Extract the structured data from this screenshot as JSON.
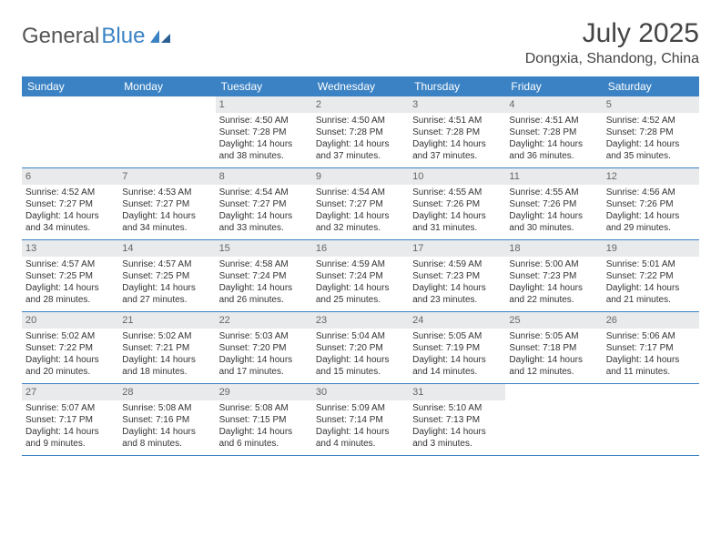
{
  "logo": {
    "text1": "General",
    "text2": "Blue"
  },
  "title": "July 2025",
  "location": "Dongxia, Shandong, China",
  "colors": {
    "header_bg": "#3b82c4",
    "header_text": "#ffffff",
    "daynum_bg": "#e8eaec",
    "border": "#3b82c4",
    "body_text": "#333333"
  },
  "day_headers": [
    "Sunday",
    "Monday",
    "Tuesday",
    "Wednesday",
    "Thursday",
    "Friday",
    "Saturday"
  ],
  "weeks": [
    [
      {
        "n": "",
        "sr": "",
        "ss": "",
        "dl": ""
      },
      {
        "n": "",
        "sr": "",
        "ss": "",
        "dl": ""
      },
      {
        "n": "1",
        "sr": "Sunrise: 4:50 AM",
        "ss": "Sunset: 7:28 PM",
        "dl": "Daylight: 14 hours and 38 minutes."
      },
      {
        "n": "2",
        "sr": "Sunrise: 4:50 AM",
        "ss": "Sunset: 7:28 PM",
        "dl": "Daylight: 14 hours and 37 minutes."
      },
      {
        "n": "3",
        "sr": "Sunrise: 4:51 AM",
        "ss": "Sunset: 7:28 PM",
        "dl": "Daylight: 14 hours and 37 minutes."
      },
      {
        "n": "4",
        "sr": "Sunrise: 4:51 AM",
        "ss": "Sunset: 7:28 PM",
        "dl": "Daylight: 14 hours and 36 minutes."
      },
      {
        "n": "5",
        "sr": "Sunrise: 4:52 AM",
        "ss": "Sunset: 7:28 PM",
        "dl": "Daylight: 14 hours and 35 minutes."
      }
    ],
    [
      {
        "n": "6",
        "sr": "Sunrise: 4:52 AM",
        "ss": "Sunset: 7:27 PM",
        "dl": "Daylight: 14 hours and 34 minutes."
      },
      {
        "n": "7",
        "sr": "Sunrise: 4:53 AM",
        "ss": "Sunset: 7:27 PM",
        "dl": "Daylight: 14 hours and 34 minutes."
      },
      {
        "n": "8",
        "sr": "Sunrise: 4:54 AM",
        "ss": "Sunset: 7:27 PM",
        "dl": "Daylight: 14 hours and 33 minutes."
      },
      {
        "n": "9",
        "sr": "Sunrise: 4:54 AM",
        "ss": "Sunset: 7:27 PM",
        "dl": "Daylight: 14 hours and 32 minutes."
      },
      {
        "n": "10",
        "sr": "Sunrise: 4:55 AM",
        "ss": "Sunset: 7:26 PM",
        "dl": "Daylight: 14 hours and 31 minutes."
      },
      {
        "n": "11",
        "sr": "Sunrise: 4:55 AM",
        "ss": "Sunset: 7:26 PM",
        "dl": "Daylight: 14 hours and 30 minutes."
      },
      {
        "n": "12",
        "sr": "Sunrise: 4:56 AM",
        "ss": "Sunset: 7:26 PM",
        "dl": "Daylight: 14 hours and 29 minutes."
      }
    ],
    [
      {
        "n": "13",
        "sr": "Sunrise: 4:57 AM",
        "ss": "Sunset: 7:25 PM",
        "dl": "Daylight: 14 hours and 28 minutes."
      },
      {
        "n": "14",
        "sr": "Sunrise: 4:57 AM",
        "ss": "Sunset: 7:25 PM",
        "dl": "Daylight: 14 hours and 27 minutes."
      },
      {
        "n": "15",
        "sr": "Sunrise: 4:58 AM",
        "ss": "Sunset: 7:24 PM",
        "dl": "Daylight: 14 hours and 26 minutes."
      },
      {
        "n": "16",
        "sr": "Sunrise: 4:59 AM",
        "ss": "Sunset: 7:24 PM",
        "dl": "Daylight: 14 hours and 25 minutes."
      },
      {
        "n": "17",
        "sr": "Sunrise: 4:59 AM",
        "ss": "Sunset: 7:23 PM",
        "dl": "Daylight: 14 hours and 23 minutes."
      },
      {
        "n": "18",
        "sr": "Sunrise: 5:00 AM",
        "ss": "Sunset: 7:23 PM",
        "dl": "Daylight: 14 hours and 22 minutes."
      },
      {
        "n": "19",
        "sr": "Sunrise: 5:01 AM",
        "ss": "Sunset: 7:22 PM",
        "dl": "Daylight: 14 hours and 21 minutes."
      }
    ],
    [
      {
        "n": "20",
        "sr": "Sunrise: 5:02 AM",
        "ss": "Sunset: 7:22 PM",
        "dl": "Daylight: 14 hours and 20 minutes."
      },
      {
        "n": "21",
        "sr": "Sunrise: 5:02 AM",
        "ss": "Sunset: 7:21 PM",
        "dl": "Daylight: 14 hours and 18 minutes."
      },
      {
        "n": "22",
        "sr": "Sunrise: 5:03 AM",
        "ss": "Sunset: 7:20 PM",
        "dl": "Daylight: 14 hours and 17 minutes."
      },
      {
        "n": "23",
        "sr": "Sunrise: 5:04 AM",
        "ss": "Sunset: 7:20 PM",
        "dl": "Daylight: 14 hours and 15 minutes."
      },
      {
        "n": "24",
        "sr": "Sunrise: 5:05 AM",
        "ss": "Sunset: 7:19 PM",
        "dl": "Daylight: 14 hours and 14 minutes."
      },
      {
        "n": "25",
        "sr": "Sunrise: 5:05 AM",
        "ss": "Sunset: 7:18 PM",
        "dl": "Daylight: 14 hours and 12 minutes."
      },
      {
        "n": "26",
        "sr": "Sunrise: 5:06 AM",
        "ss": "Sunset: 7:17 PM",
        "dl": "Daylight: 14 hours and 11 minutes."
      }
    ],
    [
      {
        "n": "27",
        "sr": "Sunrise: 5:07 AM",
        "ss": "Sunset: 7:17 PM",
        "dl": "Daylight: 14 hours and 9 minutes."
      },
      {
        "n": "28",
        "sr": "Sunrise: 5:08 AM",
        "ss": "Sunset: 7:16 PM",
        "dl": "Daylight: 14 hours and 8 minutes."
      },
      {
        "n": "29",
        "sr": "Sunrise: 5:08 AM",
        "ss": "Sunset: 7:15 PM",
        "dl": "Daylight: 14 hours and 6 minutes."
      },
      {
        "n": "30",
        "sr": "Sunrise: 5:09 AM",
        "ss": "Sunset: 7:14 PM",
        "dl": "Daylight: 14 hours and 4 minutes."
      },
      {
        "n": "31",
        "sr": "Sunrise: 5:10 AM",
        "ss": "Sunset: 7:13 PM",
        "dl": "Daylight: 14 hours and 3 minutes."
      },
      {
        "n": "",
        "sr": "",
        "ss": "",
        "dl": ""
      },
      {
        "n": "",
        "sr": "",
        "ss": "",
        "dl": ""
      }
    ]
  ]
}
